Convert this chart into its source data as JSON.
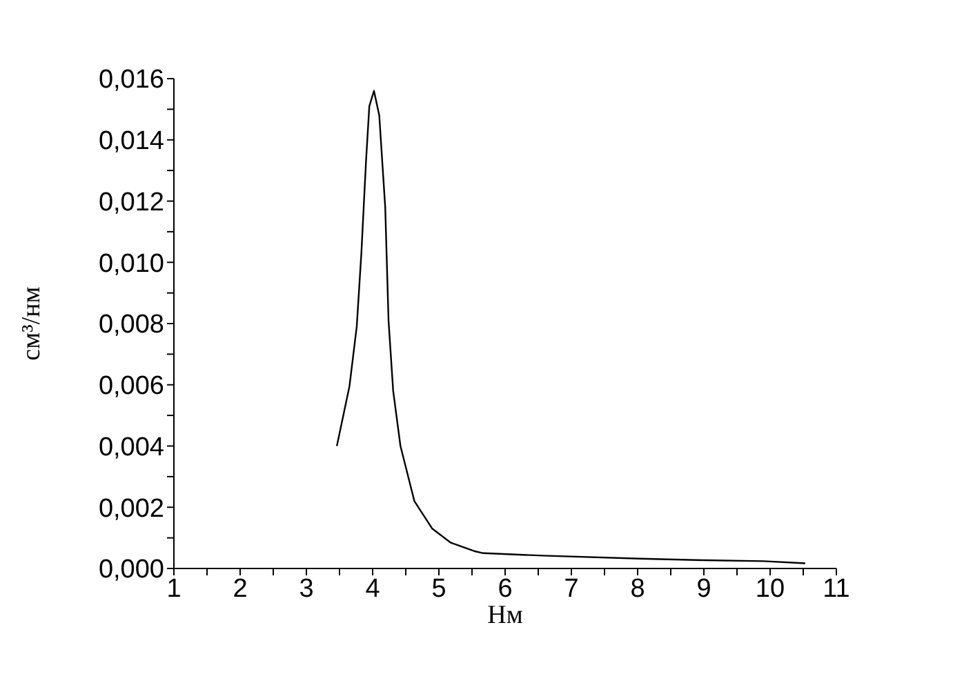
{
  "chart_data": {
    "type": "line",
    "xlabel": "Нм",
    "ylabel": "см³/нм",
    "x": [
      3.46,
      3.65,
      3.76,
      3.83,
      3.9,
      3.95,
      4.02,
      4.1,
      4.19,
      4.24,
      4.31,
      4.42,
      4.63,
      4.9,
      5.18,
      5.53,
      5.67,
      6.57,
      8.03,
      9.0,
      9.9,
      10.53
    ],
    "series": [
      {
        "color": "#000000",
        "values": [
          0.004,
          0.00595,
          0.0079,
          0.0103,
          0.0133,
          0.0151,
          0.0156,
          0.0148,
          0.0118,
          0.0081,
          0.0058,
          0.004,
          0.0022,
          0.0013,
          0.00084,
          0.00057,
          0.0005,
          0.00042,
          0.00032,
          0.00027,
          0.00024,
          0.00017
        ]
      }
    ],
    "xlim": [
      1,
      11
    ],
    "xticks": [
      1,
      {
        "value": 1.5,
        "label": null
      },
      2,
      {
        "value": 2.5,
        "label": null
      },
      3,
      {
        "value": 3.5,
        "label": null
      },
      4,
      {
        "value": 4.5,
        "label": null
      },
      5,
      {
        "value": 5.5,
        "label": null
      },
      6,
      {
        "value": 6.5,
        "label": null
      },
      7,
      {
        "value": 7.5,
        "label": null
      },
      8,
      {
        "value": 8.5,
        "label": null
      },
      9,
      {
        "value": 9.5,
        "label": null
      },
      10,
      {
        "value": 10.5,
        "label": null
      },
      11
    ],
    "ylim": [
      0,
      0.016
    ],
    "yticks": [
      {
        "value": 0,
        "label": "0,000"
      },
      {
        "value": 0.001,
        "label": null
      },
      {
        "value": 0.002,
        "label": "0,002"
      },
      {
        "value": 0.003,
        "label": null
      },
      {
        "value": 0.004,
        "label": "0,004"
      },
      {
        "value": 0.005,
        "label": null
      },
      {
        "value": 0.006,
        "label": "0,006"
      },
      {
        "value": 0.007,
        "label": null
      },
      {
        "value": 0.008,
        "label": "0,008"
      },
      {
        "value": 0.009,
        "label": null
      },
      {
        "value": 0.01,
        "label": "0,010"
      },
      {
        "value": 0.011,
        "label": null
      },
      {
        "value": 0.012,
        "label": "0,012"
      },
      {
        "value": 0.013,
        "label": null
      },
      {
        "value": 0.014,
        "label": "0,014"
      },
      {
        "value": 0.015,
        "label": null
      },
      {
        "value": 0.016,
        "label": "0,016"
      }
    ],
    "grid": false,
    "legend": false,
    "marker": "none",
    "line_style": "solid"
  }
}
